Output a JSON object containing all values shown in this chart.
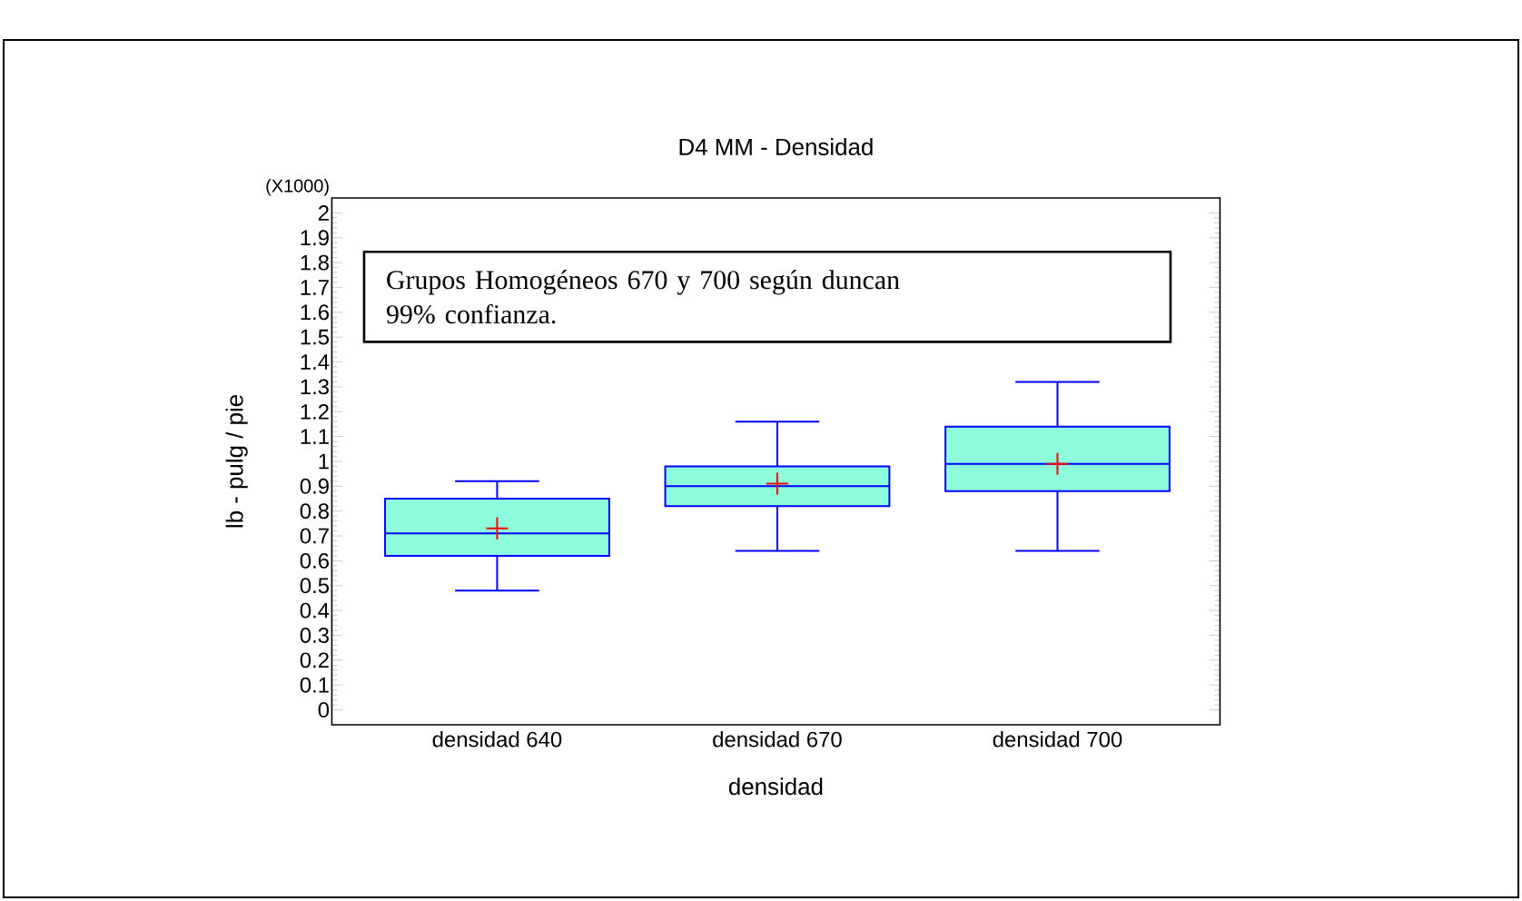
{
  "chart_data": {
    "type": "box",
    "title": "D4  MM - Densidad",
    "xlabel": "densidad",
    "ylabel": "lb - pulg / pie",
    "categories": [
      "densidad 640",
      "densidad 670",
      "densidad 700"
    ],
    "series": [
      {
        "color": "#8cfcdc",
        "boxes": [
          {
            "low": 0.48,
            "q1": 0.62,
            "median": 0.71,
            "q3": 0.85,
            "high": 0.92,
            "mean": 0.73
          },
          {
            "low": 0.64,
            "q1": 0.82,
            "median": 0.9,
            "q3": 0.98,
            "high": 1.16,
            "mean": 0.91
          },
          {
            "low": 0.64,
            "q1": 0.88,
            "median": 0.99,
            "q3": 1.14,
            "high": 1.32,
            "mean": 0.99
          }
        ]
      }
    ],
    "ylim": [
      -0.06,
      2.06
    ],
    "yticks": [
      0,
      0.1,
      0.2,
      0.3,
      0.4,
      0.5,
      0.6,
      0.7,
      0.8,
      0.9,
      1,
      1.1,
      1.2,
      1.3,
      1.4,
      1.5,
      1.6,
      1.7,
      1.8,
      1.9,
      2
    ],
    "annotations": [
      "(X1000)",
      "Grupos Homogéneos  670 y 700 según duncan",
      "99% confianza."
    ],
    "grid": false,
    "marker": "cross"
  }
}
